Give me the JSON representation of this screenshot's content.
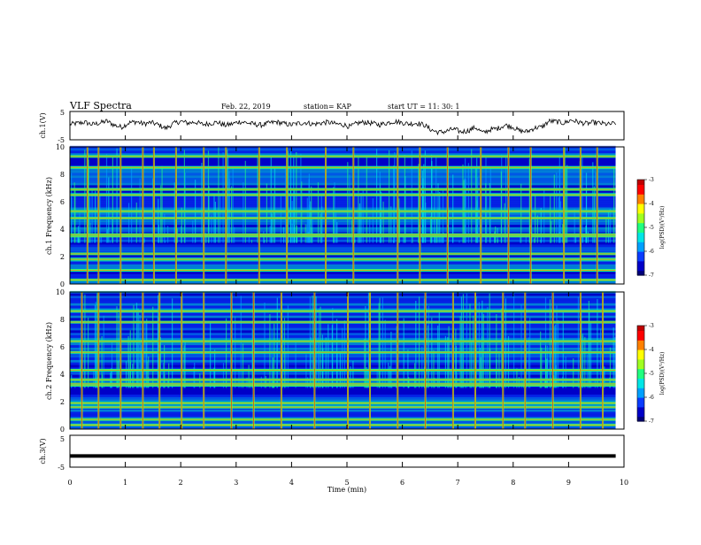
{
  "header": {
    "title": "VLF Spectra",
    "date": "Feb. 22, 2019",
    "station": "station= KAP",
    "start": "start  UT =   11: 30: 1"
  },
  "colors": {
    "colormap": [
      "#00007a",
      "#0000c8",
      "#0a3cff",
      "#00a0ff",
      "#00e6e6",
      "#20ff80",
      "#a0ff20",
      "#ffff00",
      "#ff8000",
      "#ff0000",
      "#c00000"
    ],
    "waveform": "#000000",
    "background": "#ffffff"
  },
  "chart_data": [
    {
      "type": "line",
      "panel": "ch1-waveform",
      "ylabel": "ch.1(V)",
      "ylim": [
        -5,
        5
      ],
      "yticks": [
        "5",
        "-5"
      ],
      "xlim": [
        0,
        10
      ],
      "description_of_series": "noisy broadband signal fluctuating roughly between -3 and +2 V",
      "series": [
        {
          "values": [
            0.5,
            0.8,
            1.2,
            0.4,
            0.9,
            1.6,
            0.2,
            -0.5,
            1.0,
            1.4,
            0.6,
            1.1,
            0.3,
            -1.0,
            0.7,
            1.5,
            0.9,
            1.3,
            0.4,
            0.8,
            1.2,
            0.1,
            0.6,
            1.4,
            1.0,
            0.5,
            0.2,
            0.9,
            1.3,
            0.7,
            0.3,
            0.8,
            1.1,
            0.5,
            0.9,
            1.2,
            0.6,
            0.4,
            -0.4,
            0.9,
            1.2,
            0.8,
            0.3,
            1.0,
            1.5,
            1.1,
            0.6,
            0.9,
            0.3,
            -1.5,
            -2.4,
            -2.0,
            -1.2,
            -2.2,
            -1.8,
            -0.6,
            -2.6,
            -1.4,
            -1.0,
            0.2,
            -0.4,
            -1.9,
            -2.1,
            -0.8,
            -0.5,
            1.6,
            1.4,
            0.9,
            2.0,
            1.2,
            0.7,
            1.1,
            0.8,
            0.4,
            0.9
          ]
        }
      ]
    },
    {
      "type": "heatmap",
      "panel": "ch1-spectrogram",
      "ylabel": "ch.1 Frequency (kHz)",
      "ylim": [
        0,
        10
      ],
      "yticks": [
        "0",
        "2",
        "4",
        "6",
        "8",
        "10"
      ],
      "xlim": [
        0,
        10
      ],
      "colorbar": {
        "label": "log(PSD)(V²/Hz)",
        "range": [
          -7,
          -3
        ],
        "ticks": [
          "-3",
          "-4",
          "-5",
          "-6",
          "-7"
        ]
      },
      "strong_bands_khz": [
        0.3,
        1.0,
        1.8,
        2.2,
        3.5,
        3.6,
        4.8,
        5.3,
        6.5,
        6.9,
        8.5,
        9.3
      ],
      "impulse_times_min": [
        0.3,
        0.5,
        0.9,
        1.3,
        1.5,
        1.9,
        2.4,
        2.8,
        3.4,
        3.9,
        4.6,
        5.1,
        5.9,
        6.3,
        6.8,
        7.4,
        7.9,
        8.3,
        8.9,
        9.2,
        9.5
      ]
    },
    {
      "type": "heatmap",
      "panel": "ch2-spectrogram",
      "ylabel": "ch.2 Frequency (kHz)",
      "ylim": [
        0,
        10
      ],
      "yticks": [
        "0",
        "2",
        "4",
        "6",
        "8",
        "10"
      ],
      "xlim": [
        0,
        10
      ],
      "colorbar": {
        "label": "log(PSD)(V²/Hz)",
        "range": [
          -7,
          -3
        ],
        "ticks": [
          "-3",
          "-4",
          "-5",
          "-6",
          "-7"
        ]
      },
      "strong_bands_khz": [
        0.3,
        0.7,
        1.6,
        1.9,
        3.2,
        3.3,
        3.6,
        4.3,
        5.6,
        6.4,
        7.8,
        8.6
      ],
      "impulse_times_min": [
        0.2,
        0.5,
        0.9,
        1.3,
        1.6,
        2.0,
        2.4,
        2.9,
        3.3,
        3.8,
        4.4,
        5.0,
        5.4,
        5.9,
        6.4,
        6.9,
        7.3,
        7.8,
        8.2,
        8.7,
        9.2,
        9.6
      ]
    },
    {
      "type": "line",
      "panel": "ch3-waveform",
      "ylabel": "ch.3(V)",
      "ylim": [
        -5,
        5
      ],
      "yticks": [
        "5",
        "-5"
      ],
      "xlim": [
        0,
        10
      ],
      "xlabel": "Time (min)",
      "xticks": [
        "0",
        "1",
        "2",
        "3",
        "4",
        "5",
        "6",
        "7",
        "8",
        "9",
        "10"
      ],
      "series": [
        {
          "values": [
            -1.5,
            -1.5
          ]
        }
      ]
    }
  ]
}
